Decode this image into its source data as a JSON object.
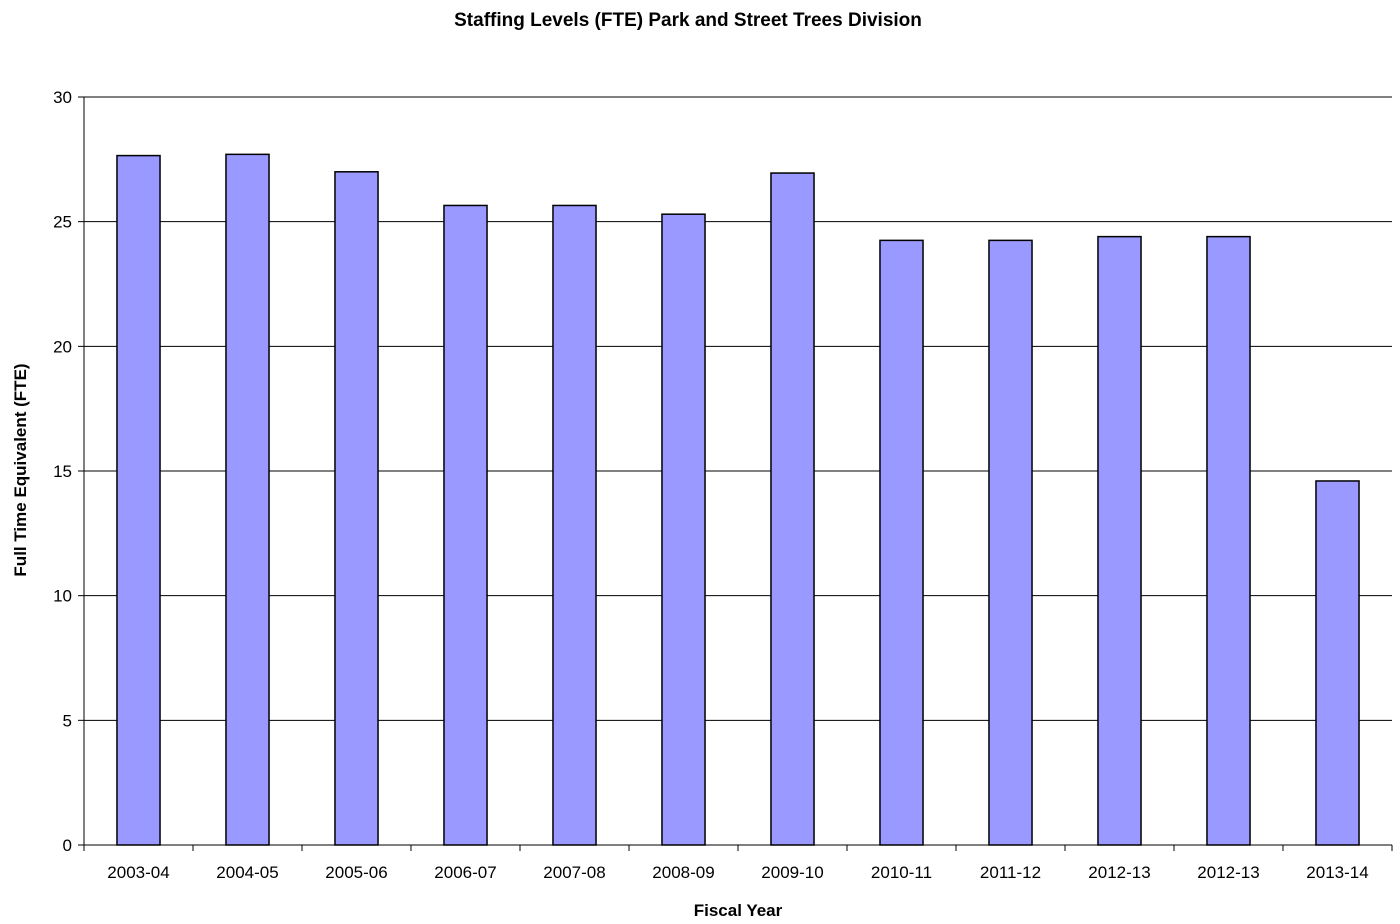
{
  "chart_data": {
    "type": "bar",
    "title": "Staffing Levels (FTE) Park and Street Trees Division",
    "xlabel": "Fiscal Year",
    "ylabel": "Full Time Equivalent (FTE)",
    "categories": [
      "2003-04",
      "2004-05",
      "2005-06",
      "2006-07",
      "2007-08",
      "2008-09",
      "2009-10",
      "2010-11",
      "2011-12",
      "2012-13",
      "2012-13",
      "2013-14"
    ],
    "values": [
      27.65,
      27.7,
      27.0,
      25.65,
      25.65,
      25.3,
      26.95,
      24.25,
      24.25,
      24.4,
      24.4,
      14.6
    ],
    "ylim": [
      0,
      30
    ],
    "yticks": [
      0,
      5,
      10,
      15,
      20,
      25,
      30
    ],
    "grid": true,
    "legend": "none",
    "bar_color": "#9999ff",
    "bar_edge_color": "#000000"
  }
}
